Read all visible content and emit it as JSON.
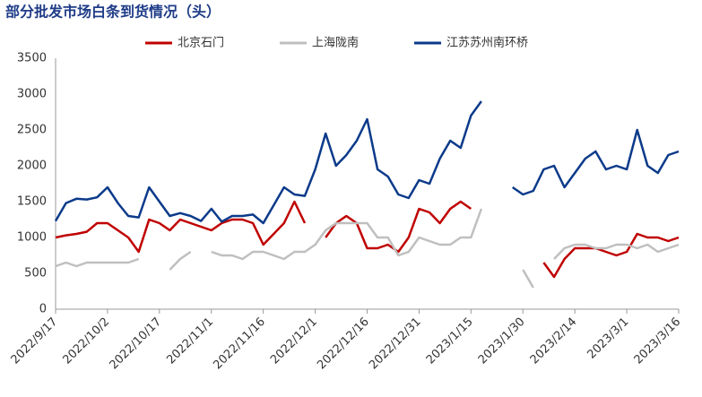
{
  "chart_data": {
    "type": "line",
    "title": "部分批发市场白条到货情况（头）",
    "x": [
      "2022/9/17",
      "2022/9/20",
      "2022/9/23",
      "2022/9/26",
      "2022/9/29",
      "2022/10/2",
      "2022/10/5",
      "2022/10/8",
      "2022/10/11",
      "2022/10/14",
      "2022/10/17",
      "2022/10/20",
      "2022/10/23",
      "2022/10/26",
      "2022/10/29",
      "2022/11/1",
      "2022/11/4",
      "2022/11/7",
      "2022/11/10",
      "2022/11/13",
      "2022/11/16",
      "2022/11/19",
      "2022/11/22",
      "2022/11/25",
      "2022/11/28",
      "2022/12/1",
      "2022/12/4",
      "2022/12/7",
      "2022/12/10",
      "2022/12/13",
      "2022/12/16",
      "2022/12/19",
      "2022/12/22",
      "2022/12/25",
      "2022/12/28",
      "2022/12/31",
      "2023/1/3",
      "2023/1/6",
      "2023/1/9",
      "2023/1/12",
      "2023/1/15",
      "2023/1/18",
      "2023/1/21",
      "2023/1/24",
      "2023/1/27",
      "2023/1/30",
      "2023/2/2",
      "2023/2/5",
      "2023/2/8",
      "2023/2/11",
      "2023/2/14",
      "2023/2/17",
      "2023/2/20",
      "2023/2/23",
      "2023/2/26",
      "2023/3/1",
      "2023/3/4",
      "2023/3/7",
      "2023/3/10",
      "2023/3/13",
      "2023/3/16"
    ],
    "series": [
      {
        "name": "北京石门",
        "color": "#c00000",
        "values": [
          1000,
          1030,
          1050,
          1080,
          1200,
          1200,
          1100,
          1000,
          800,
          1250,
          1200,
          1100,
          1250,
          1200,
          1150,
          1100,
          1200,
          1250,
          1250,
          1200,
          900,
          1050,
          1200,
          1500,
          1200,
          null,
          1000,
          1200,
          1300,
          1200,
          850,
          850,
          900,
          800,
          1000,
          1400,
          1350,
          1200,
          1400,
          1500,
          1400,
          null,
          null,
          null,
          null,
          null,
          null,
          650,
          450,
          700,
          850,
          850,
          850,
          800,
          750,
          800,
          1050,
          1000,
          1000,
          950,
          1000
        ]
      },
      {
        "name": "上海陇南",
        "color": "#bfbfbf",
        "values": [
          600,
          650,
          600,
          650,
          650,
          650,
          650,
          650,
          700,
          null,
          null,
          550,
          700,
          800,
          null,
          800,
          750,
          750,
          700,
          800,
          800,
          750,
          700,
          800,
          800,
          900,
          1100,
          1200,
          1200,
          1200,
          1200,
          1000,
          1000,
          750,
          800,
          1000,
          950,
          900,
          900,
          1000,
          1000,
          1400,
          null,
          null,
          null,
          550,
          300,
          null,
          700,
          850,
          900,
          900,
          850,
          850,
          900,
          900,
          850,
          900,
          800,
          850,
          900
        ]
      },
      {
        "name": "江苏苏州南环桥",
        "color": "#0b3a8a",
        "values": [
          1230,
          1480,
          1540,
          1530,
          1560,
          1700,
          1480,
          1300,
          1280,
          1700,
          1500,
          1300,
          1340,
          1300,
          1230,
          1400,
          1220,
          1300,
          1300,
          1320,
          1200,
          1450,
          1700,
          1600,
          1580,
          1950,
          2450,
          2000,
          2150,
          2350,
          2650,
          1950,
          1850,
          1600,
          1550,
          1800,
          1750,
          2100,
          2350,
          2250,
          2700,
          2900,
          null,
          null,
          1700,
          1600,
          1650,
          1950,
          2000,
          1700,
          1900,
          2100,
          2200,
          1950,
          2000,
          1950,
          2500,
          2000,
          1900,
          2150,
          2200
        ]
      }
    ],
    "xlim": [
      "2022/9/17",
      "2023/3/16"
    ],
    "xticks": [
      "2022/9/17",
      "2022/10/2",
      "2022/10/17",
      "2022/11/1",
      "2022/11/16",
      "2022/12/1",
      "2022/12/16",
      "2022/12/31",
      "2023/1/15",
      "2023/1/30",
      "2023/2/14",
      "2023/3/1",
      "2023/3/16"
    ],
    "ylim": [
      0,
      3500
    ],
    "yticks": [
      0,
      500,
      1000,
      1500,
      2000,
      2500,
      3000,
      3500
    ],
    "legend": "top"
  }
}
